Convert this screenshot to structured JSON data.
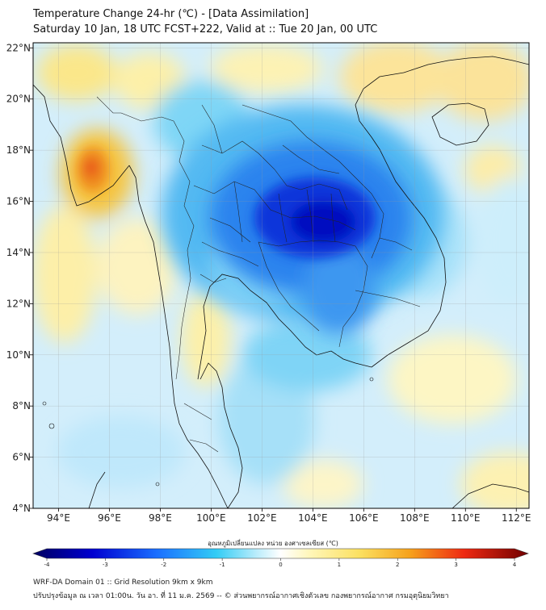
{
  "title": "Temperature Change 24-hr (℃) - [Data Assimilation]",
  "subtitle": "Saturday 10 Jan, 18 UTC FCST+222, Valid at :: Tue 20 Jan, 00 UTC",
  "map": {
    "lon_range": [
      93,
      112.5
    ],
    "lat_range": [
      4,
      22.2
    ],
    "lon_ticks": [
      "94°E",
      "96°E",
      "98°E",
      "100°E",
      "102°E",
      "104°E",
      "106°E",
      "108°E",
      "110°E",
      "112°E"
    ],
    "lat_ticks": [
      "4°N",
      "6°N",
      "8°N",
      "10°N",
      "12°N",
      "14°N",
      "16°N",
      "18°N",
      "20°N",
      "22°N"
    ],
    "grid": true
  },
  "colorbar": {
    "label": "อุณหภูมิเปลี่ยนแปลง หน่วย องศาเซลเซียส (℃)",
    "ticks": [
      "-4",
      "-3",
      "-2",
      "-1",
      "0",
      "1",
      "2",
      "3",
      "4"
    ],
    "range": [
      -4,
      4
    ]
  },
  "footer": {
    "line1": "WRF-DA Domain 01 :: Grid Resolution 9km x 9km",
    "line2": "ปรับปรุงข้อมูล ณ เวลา 01:00น. วัน อา. ที่ 11 ม.ค. 2569 -- © ส่วนพยากรณ์อากาศเชิงตัวเลข กองพยากรณ์อากาศ กรมอุตุนิยมวิทยา"
  },
  "colors": {
    "cold_max": "#0000c8",
    "cold": "#2266ee",
    "cool": "#55c8f5",
    "light_cool": "#c9ecfb",
    "neutral": "#ffffff",
    "light_warm": "#fdf3b0",
    "warm": "#f7c02e",
    "hot": "#ee3a1a",
    "hot_max": "#7a0000"
  }
}
